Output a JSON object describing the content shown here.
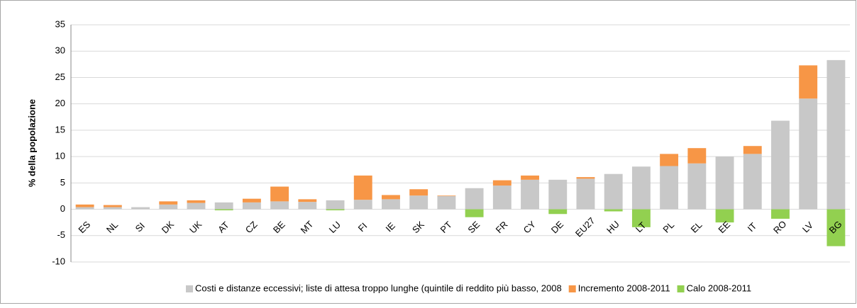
{
  "chart_data": {
    "type": "stacked-bar",
    "y_label": "% della popolazione",
    "categories": [
      "ES",
      "NL",
      "SI",
      "DK",
      "UK",
      "AT",
      "CZ",
      "BE",
      "MT",
      "LU",
      "FI",
      "IE",
      "SK",
      "PT",
      "SE",
      "FR",
      "CY",
      "DE",
      "EU27",
      "HU",
      "LT",
      "PL",
      "EL",
      "EE",
      "IT",
      "RO",
      "LV",
      "BG"
    ],
    "series": [
      {
        "name": "Costi e distanze eccessivi; liste di attesa troppo lunghe  (quintile di reddito più basso, 2008",
        "color": "#c8c8c8",
        "values": [
          0.4,
          0.4,
          0.4,
          0.9,
          1.2,
          1.3,
          1.3,
          1.5,
          1.4,
          1.7,
          1.8,
          1.9,
          2.6,
          2.5,
          4.0,
          4.5,
          5.6,
          5.6,
          5.8,
          6.7,
          8.1,
          8.2,
          8.7,
          10.0,
          10.5,
          16.8,
          21.0,
          28.3
        ]
      },
      {
        "name": "Incremento 2008-2011",
        "color": "#f79646",
        "values": [
          0.5,
          0.4,
          0,
          0.6,
          0.5,
          0,
          0.7,
          2.8,
          0.5,
          0,
          4.6,
          0.8,
          1.2,
          0.1,
          0,
          1.0,
          0.8,
          0,
          0.3,
          0,
          0,
          2.3,
          2.9,
          0,
          1.5,
          0,
          6.3,
          0
        ]
      },
      {
        "name": "Calo 2008-2011",
        "color": "#92d050",
        "values": [
          0,
          0,
          0,
          0,
          0,
          -0.2,
          0,
          0,
          0,
          -0.2,
          0,
          0,
          0,
          0,
          -1.5,
          0,
          0,
          -0.9,
          0,
          -0.4,
          -3.4,
          0,
          0,
          -2.5,
          0,
          -1.8,
          0,
          -7.0
        ]
      }
    ],
    "ylim": [
      -10,
      35
    ],
    "yticks": [
      -10,
      -5,
      0,
      5,
      10,
      15,
      20,
      25,
      30,
      35
    ],
    "grid": true
  }
}
